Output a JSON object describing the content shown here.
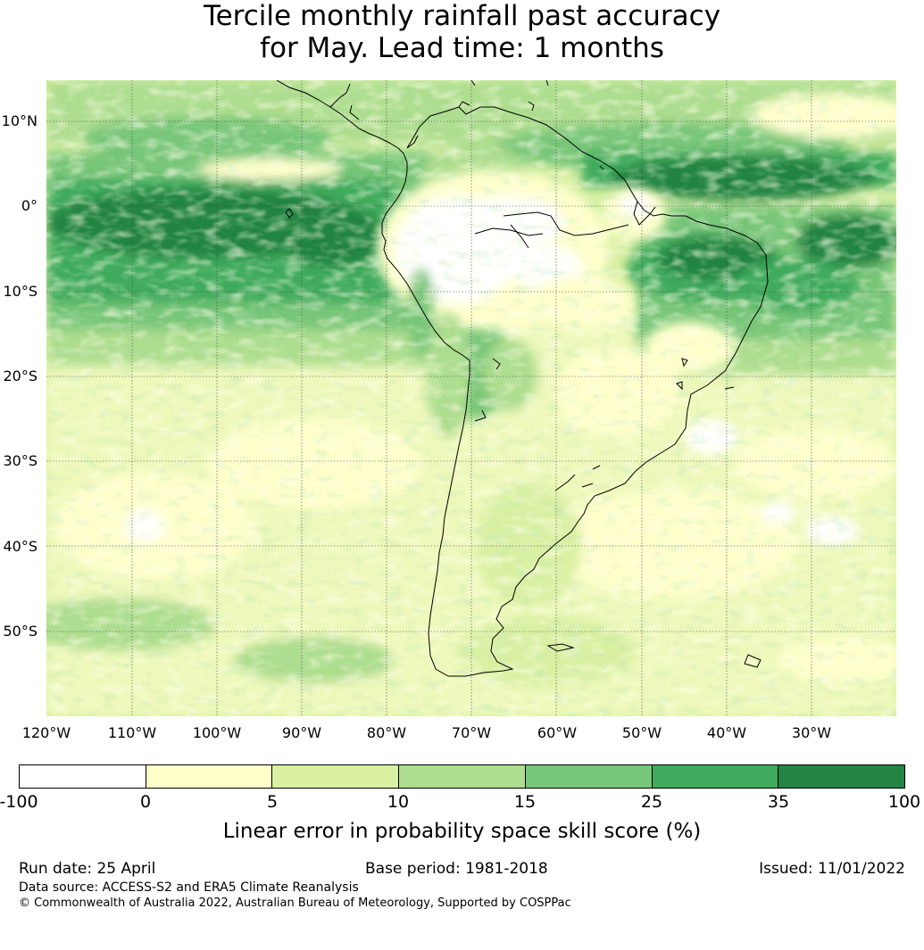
{
  "title": {
    "line1": "Tercile monthly rainfall past accuracy",
    "line2": "for May. Lead time: 1 months"
  },
  "map": {
    "lat_labels": [
      "10°N",
      "0°",
      "10°S",
      "20°S",
      "30°S",
      "40°S",
      "50°S"
    ],
    "lon_labels": [
      "120°W",
      "110°W",
      "100°W",
      "90°W",
      "80°W",
      "70°W",
      "60°W",
      "50°W",
      "40°W",
      "30°W"
    ],
    "colors": [
      "#ffffff",
      "#ffffcc",
      "#d9f0a3",
      "#addd8e",
      "#78c679",
      "#41ab5d",
      "#238443"
    ]
  },
  "colorbar": {
    "ticks": [
      "-100",
      "0",
      "5",
      "10",
      "15",
      "25",
      "35",
      "100"
    ],
    "label": "Linear error in probability space skill score (%)"
  },
  "footer": {
    "run_date": "Run date: 25 April",
    "base_period": "Base period: 1981-2018",
    "issued": "Issued: 11/01/2022",
    "data_source": "Data source: ACCESS-S2 and ERA5 Climate Reanalysis",
    "copyright": "© Commonwealth of Australia 2022, Australian Bureau of Meteorology, Supported by COSPPac"
  }
}
